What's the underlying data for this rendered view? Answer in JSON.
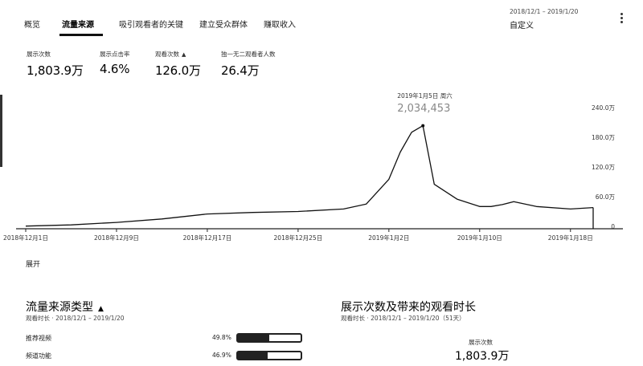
{
  "tabs": [
    {
      "label": "概览",
      "active": false
    },
    {
      "label": "流量来源",
      "active": true
    },
    {
      "label": "吸引观看者的关键",
      "active": false
    },
    {
      "label": "建立受众群体",
      "active": false
    },
    {
      "label": "赚取收入",
      "active": false
    }
  ],
  "date_selector": {
    "range": "2018/12/1 – 2019/1/20",
    "preset": "自定义"
  },
  "metrics": [
    {
      "label": "展示次数",
      "value": "1,803.9万"
    },
    {
      "label": "展示点击率",
      "value": "4.6%"
    },
    {
      "label": "观看次数",
      "value": "126.0万",
      "warning": true
    },
    {
      "label": "独一无二观看者人数",
      "value": "26.4万"
    }
  ],
  "chart_data": {
    "type": "line",
    "series": [
      {
        "color": "#111111",
        "x": [
          "2018-12-01",
          "2018-12-05",
          "2018-12-09",
          "2018-12-13",
          "2018-12-17",
          "2018-12-21",
          "2018-12-25",
          "2018-12-29",
          "2018-12-31",
          "2019-01-02",
          "2019-01-03",
          "2019-01-04",
          "2019-01-05",
          "2019-01-06",
          "2019-01-08",
          "2019-01-10",
          "2019-01-11",
          "2019-01-12",
          "2019-01-13",
          "2019-01-15",
          "2019-01-18",
          "2019-01-20"
        ],
        "values": [
          0.5,
          3,
          8,
          15,
          25,
          28,
          30,
          35,
          45,
          95,
          150,
          190,
          203.4,
          85,
          55,
          40,
          40,
          44,
          50,
          40,
          35,
          38
        ]
      }
    ],
    "x_ticks": [
      "2018年12月1日",
      "2018年12月9日",
      "2018年12月17日",
      "2018年12月25日",
      "2019年1月2日",
      "2019年1月10日",
      "2019年1月18日"
    ],
    "x_tick_dates": [
      "2018-12-01",
      "2018-12-09",
      "2018-12-17",
      "2018-12-25",
      "2019-01-02",
      "2019-01-10",
      "2019-01-18"
    ],
    "y_ticks": [
      "240.0万",
      "180.0万",
      "120.0万",
      "60.0万",
      "0"
    ],
    "y_tick_values": [
      240,
      180,
      120,
      60,
      0
    ],
    "ylim": [
      0,
      240
    ],
    "x_range": [
      "2018-12-01",
      "2019-01-20"
    ],
    "tooltip": {
      "date": "2019年1月5日 周六",
      "value": "2,034,453",
      "x": "2019-01-05"
    },
    "grid": false
  },
  "expand_label": "展开",
  "traffic_source": {
    "title": "流量来源类型",
    "subtitle": "观看时长 · 2018/12/1 – 2019/1/20",
    "rows": [
      {
        "label": "推荐视频",
        "percent": "49.8%",
        "share": 0.498
      },
      {
        "label": "频道功能",
        "percent": "46.9%",
        "share": 0.469
      }
    ]
  },
  "impressions": {
    "title": "展示次数及带来的观看时长",
    "subtitle": "观看时长 · 2018/12/1 – 2019/1/20（51天）",
    "stat_label": "展示次数",
    "stat_value": "1,803.9万"
  }
}
